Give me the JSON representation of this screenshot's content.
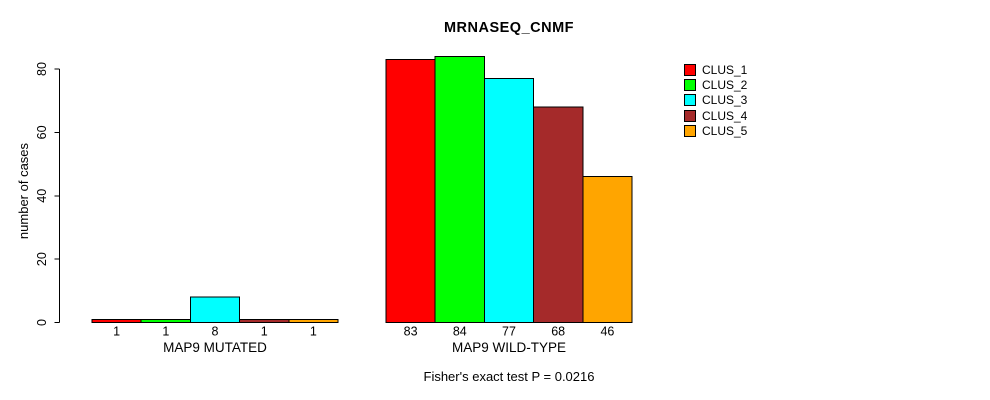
{
  "chart_data": {
    "type": "bar",
    "title": "MRNASEQ_CNMF",
    "ylabel": "number of cases",
    "xlabel": "",
    "ylim": [
      0,
      84
    ],
    "yticks": [
      0,
      20,
      40,
      60,
      80
    ],
    "grid": false,
    "legend_position": "right",
    "bar_value_labels": true,
    "categories": [
      "MAP9 MUTATED",
      "MAP9 WILD-TYPE"
    ],
    "series": [
      {
        "name": "CLUS_1",
        "color": "#FF0000",
        "values": [
          1,
          83
        ]
      },
      {
        "name": "CLUS_2",
        "color": "#00FF00",
        "values": [
          1,
          84
        ]
      },
      {
        "name": "CLUS_3",
        "color": "#00FFFF",
        "values": [
          8,
          77
        ]
      },
      {
        "name": "CLUS_4",
        "color": "#A52A2A",
        "values": [
          1,
          68
        ]
      },
      {
        "name": "CLUS_5",
        "color": "#FFA500",
        "values": [
          1,
          46
        ]
      }
    ],
    "annotation": "Fisher's exact test P = 0.0216",
    "axis_color": "#000000",
    "bar_border_color": "#000000"
  }
}
